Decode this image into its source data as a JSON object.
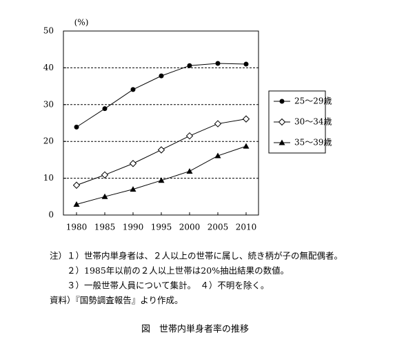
{
  "chart_data": {
    "type": "line",
    "title": "図　世帯内単身者率の推移",
    "y_label": "(%)",
    "categories": [
      "1980",
      "1985",
      "1990",
      "1995",
      "2000",
      "2005",
      "2010"
    ],
    "series": [
      {
        "name": "25～29歳",
        "color": "#000000",
        "marker": "circle",
        "values": [
          23.9,
          28.9,
          34.1,
          37.8,
          40.6,
          41.2,
          41.0
        ]
      },
      {
        "name": "30～34歳",
        "color": "#000000",
        "marker": "diamond",
        "values": [
          8.1,
          10.9,
          14.0,
          17.7,
          21.5,
          24.8,
          26.1
        ]
      },
      {
        "name": "35～39歳",
        "color": "#000000",
        "marker": "triangle",
        "values": [
          2.9,
          5.0,
          7.0,
          9.4,
          11.9,
          16.1,
          18.7
        ]
      }
    ],
    "ylim": [
      0,
      50
    ],
    "yticks": [
      0,
      10,
      20,
      30,
      40,
      50
    ],
    "grid": true,
    "legend": "right"
  },
  "notes": [
    "注）１）世帯内単身者は、２人以上の世帯に属し、続き柄が子の無配偶者。",
    "　　２）1985年以前の２人以上世帯は20%抽出結果の数値。",
    "　　３）一般世帯人員について集計。　４）不明を除く。",
    "資料）『国勢調査報告』より作成。"
  ]
}
